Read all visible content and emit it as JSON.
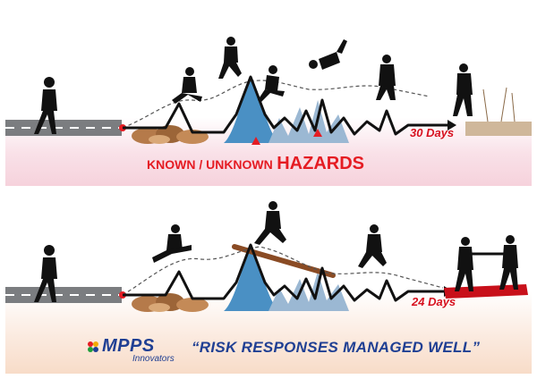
{
  "top_panel": {
    "hazards_small": "KNOWN / UNKNOWN",
    "hazards_big": "HAZARDS",
    "days": "30 Days"
  },
  "bottom_panel": {
    "days": "24 Days"
  },
  "footer": {
    "brand": "MPPS",
    "brand_sub": "Innovators",
    "motto": "“RISK RESPONSES MANAGED WELL”"
  },
  "colors": {
    "road": "#7b7d80",
    "accent_red": "#e51c23",
    "brand_blue": "#1f3f93",
    "mountain_blue": "#4a90c4"
  }
}
